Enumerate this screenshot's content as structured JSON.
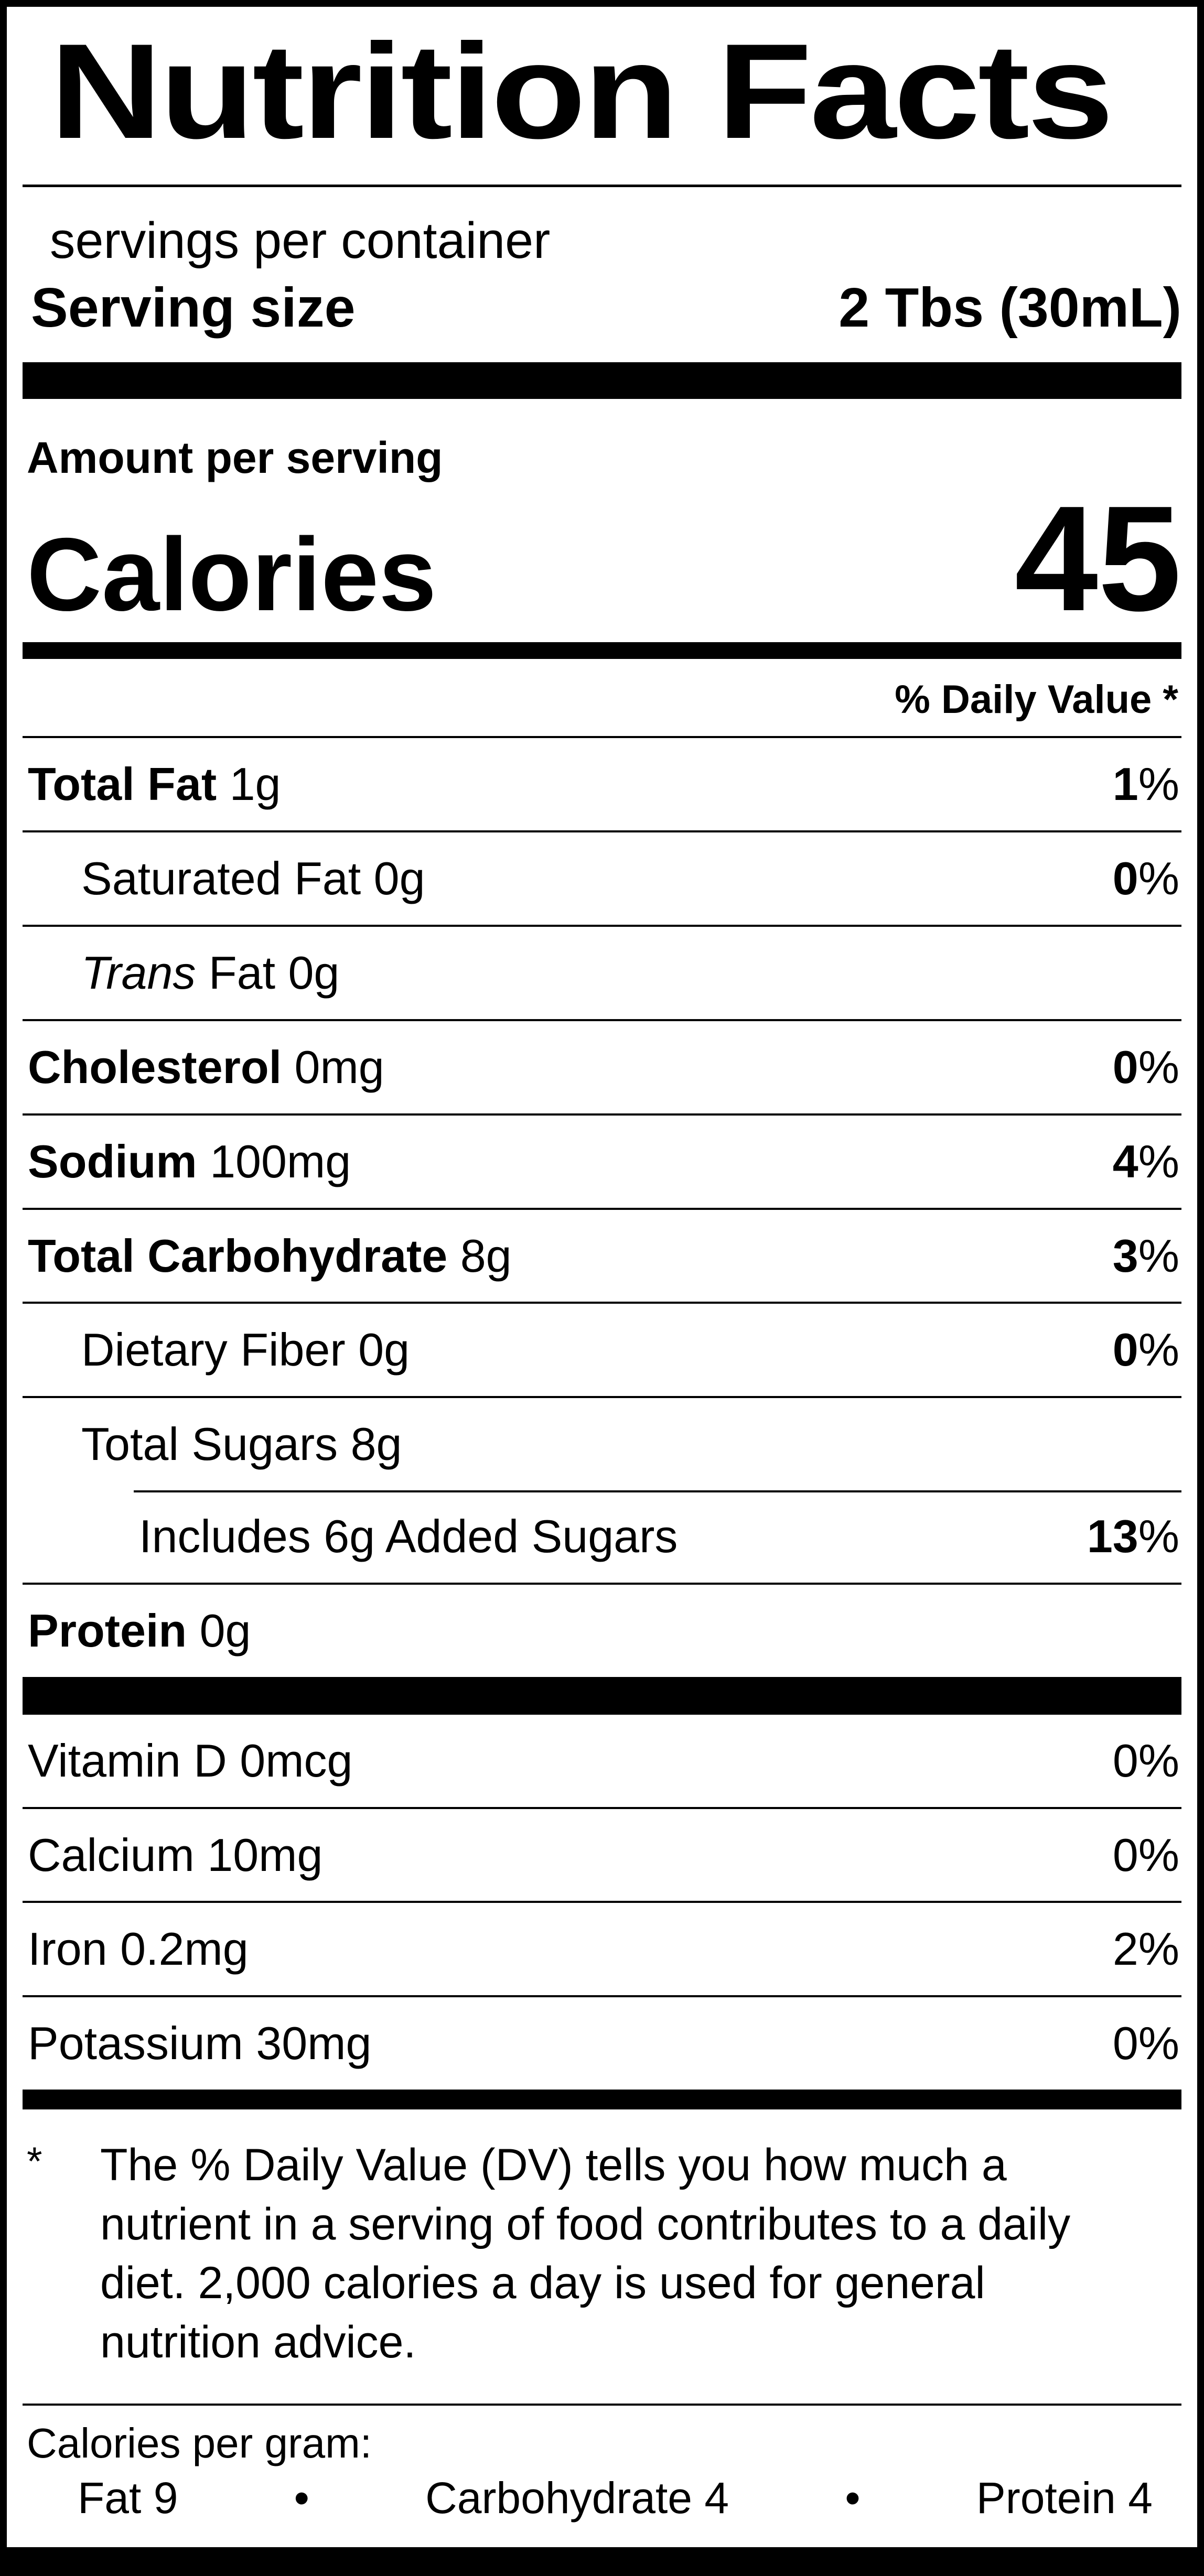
{
  "nutrition_label": {
    "title": "Nutrition Facts",
    "servings_line": "servings per container",
    "serving_size": {
      "label": "Serving size",
      "value": "2 Tbs (30mL)"
    },
    "amount_per_serving": "Amount per serving",
    "calories": {
      "label": "Calories",
      "value": "45"
    },
    "daily_value_header": "% Daily Value *",
    "rows": [
      {
        "bold": "Total Fat",
        "italic": "",
        "text": " 1g",
        "dv_num": "1",
        "dv_sign": "%"
      },
      {
        "bold": "",
        "italic": "",
        "text": "Saturated Fat 0g",
        "dv_num": "0",
        "dv_sign": "%"
      },
      {
        "bold": "",
        "italic": "Trans",
        "text": " Fat 0g",
        "dv_num": "",
        "dv_sign": ""
      },
      {
        "bold": "Cholesterol",
        "italic": "",
        "text": " 0mg",
        "dv_num": "0",
        "dv_sign": "%"
      },
      {
        "bold": "Sodium",
        "italic": "",
        "text": " 100mg",
        "dv_num": "4",
        "dv_sign": "%"
      },
      {
        "bold": "Total Carbohydrate",
        "italic": "",
        "text": " 8g",
        "dv_num": "3",
        "dv_sign": "%"
      },
      {
        "bold": "",
        "italic": "",
        "text": "Dietary Fiber 0g",
        "dv_num": "0",
        "dv_sign": "%"
      },
      {
        "bold": "",
        "italic": "",
        "text": "Total Sugars 8g",
        "dv_num": "",
        "dv_sign": ""
      },
      {
        "bold": "",
        "italic": "",
        "text": "Includes 6g Added Sugars",
        "dv_num": "13",
        "dv_sign": "%"
      },
      {
        "bold": "Protein",
        "italic": "",
        "text": " 0g",
        "dv_num": "",
        "dv_sign": ""
      }
    ],
    "micronutrients": [
      {
        "text": "Vitamin D 0mcg",
        "dv": "0%"
      },
      {
        "text": "Calcium 10mg",
        "dv": "0%"
      },
      {
        "text": "Iron 0.2mg",
        "dv": "2%"
      },
      {
        "text": "Potassium 30mg",
        "dv": "0%"
      }
    ],
    "footnote_marker": "*",
    "footnote": "The % Daily Value (DV) tells you how much a nutrient in a serving of food contributes to a daily diet. 2,000 calories a day is used for general nutrition advice.",
    "calories_per_gram": {
      "label": "Calories per gram:",
      "items": [
        "Fat 9",
        "Carbohydrate 4",
        "Protein 4"
      ],
      "bullet": "•"
    },
    "colors": {
      "ink": "#000000",
      "paper": "#ffffff"
    }
  }
}
